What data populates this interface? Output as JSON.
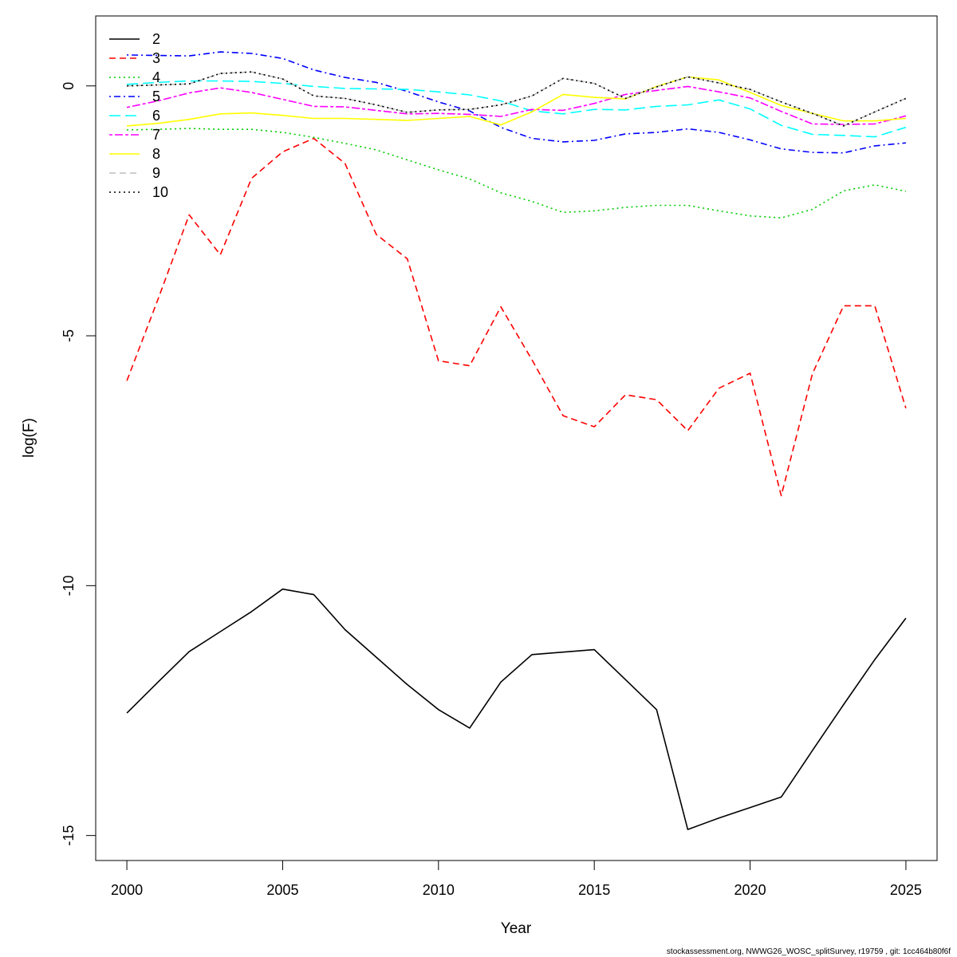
{
  "chart_data": {
    "type": "line",
    "title": "",
    "xlabel": "Year",
    "ylabel": "log(F)",
    "xlim": [
      1999,
      2026
    ],
    "ylim": [
      -15.5,
      1.4
    ],
    "xticks": [
      2000,
      2005,
      2010,
      2015,
      2020,
      2025
    ],
    "yticks": [
      -15,
      -10,
      -5,
      0
    ],
    "x": [
      2000,
      2001,
      2002,
      2003,
      2004,
      2005,
      2006,
      2007,
      2008,
      2009,
      2010,
      2011,
      2012,
      2013,
      2014,
      2015,
      2016,
      2017,
      2018,
      2019,
      2020,
      2021,
      2022,
      2023,
      2024,
      2025
    ],
    "legend_position": "top-left",
    "series": [
      {
        "name": "2",
        "color": "#000000",
        "dash": "solid",
        "values": [
          -12.55,
          -11.93,
          -11.32,
          -10.92,
          -10.52,
          -10.07,
          -10.18,
          -10.88,
          -11.43,
          -11.98,
          -12.48,
          -12.85,
          -11.93,
          -11.38,
          -11.33,
          -11.28,
          -11.88,
          -12.48,
          -14.88,
          -14.65,
          -14.44,
          -14.23,
          -13.3,
          -12.38,
          -11.48,
          -10.65
        ]
      },
      {
        "name": "3",
        "color": "#ff0000",
        "dash": "dashed",
        "values": [
          -5.9,
          -4.27,
          -2.58,
          -3.38,
          -1.85,
          -1.32,
          -1.05,
          -1.55,
          -2.97,
          -3.46,
          -5.5,
          -5.6,
          -4.42,
          -5.48,
          -6.6,
          -6.82,
          -6.18,
          -6.28,
          -6.9,
          -6.05,
          -5.75,
          -8.2,
          -5.76,
          -4.4,
          -4.4,
          -6.45
        ]
      },
      {
        "name": "4",
        "color": "#00cd00",
        "dash": "dotted",
        "values": [
          -0.88,
          -0.87,
          -0.85,
          -0.87,
          -0.87,
          -0.93,
          -1.03,
          -1.15,
          -1.28,
          -1.48,
          -1.68,
          -1.86,
          -2.14,
          -2.31,
          -2.53,
          -2.5,
          -2.43,
          -2.39,
          -2.39,
          -2.5,
          -2.6,
          -2.64,
          -2.47,
          -2.1,
          -1.98,
          -2.11
        ]
      },
      {
        "name": "5",
        "color": "#0000ff",
        "dash": "dashdot",
        "values": [
          0.62,
          0.61,
          0.6,
          0.68,
          0.65,
          0.55,
          0.32,
          0.17,
          0.07,
          -0.11,
          -0.32,
          -0.5,
          -0.83,
          -1.05,
          -1.12,
          -1.09,
          -0.96,
          -0.93,
          -0.86,
          -0.93,
          -1.08,
          -1.26,
          -1.33,
          -1.34,
          -1.2,
          -1.14
        ]
      },
      {
        "name": "6",
        "color": "#00ffff",
        "dash": "longdash",
        "values": [
          0.03,
          0.07,
          0.1,
          0.1,
          0.09,
          0.05,
          -0.01,
          -0.05,
          -0.06,
          -0.07,
          -0.12,
          -0.18,
          -0.3,
          -0.5,
          -0.56,
          -0.47,
          -0.48,
          -0.41,
          -0.38,
          -0.28,
          -0.46,
          -0.79,
          -0.97,
          -0.99,
          -1.02,
          -0.83
        ]
      },
      {
        "name": "7",
        "color": "#ff00ff",
        "dash": "twodash",
        "values": [
          -0.43,
          -0.3,
          -0.14,
          -0.04,
          -0.13,
          -0.27,
          -0.41,
          -0.42,
          -0.49,
          -0.56,
          -0.55,
          -0.57,
          -0.61,
          -0.47,
          -0.49,
          -0.35,
          -0.17,
          -0.09,
          -0.01,
          -0.12,
          -0.24,
          -0.51,
          -0.76,
          -0.77,
          -0.76,
          -0.6
        ]
      },
      {
        "name": "8",
        "color": "#ffff00",
        "dash": "solid",
        "values": [
          -0.8,
          -0.75,
          -0.67,
          -0.56,
          -0.54,
          -0.59,
          -0.65,
          -0.65,
          -0.67,
          -0.69,
          -0.65,
          -0.61,
          -0.78,
          -0.52,
          -0.17,
          -0.23,
          -0.26,
          -0.01,
          0.18,
          0.12,
          -0.13,
          -0.39,
          -0.55,
          -0.7,
          -0.7,
          -0.65
        ]
      },
      {
        "name": "9",
        "color": "#bebebe",
        "dash": "dashed",
        "values": [
          0.0,
          0.02,
          0.04,
          0.25,
          0.28,
          0.14,
          -0.2,
          -0.25,
          -0.38,
          -0.53,
          -0.48,
          -0.47,
          -0.38,
          -0.2,
          0.15,
          0.05,
          -0.25,
          -0.02,
          0.18,
          0.06,
          -0.07,
          -0.32,
          -0.55,
          -0.8,
          -0.52,
          -0.25
        ]
      },
      {
        "name": "10",
        "color": "#000000",
        "dash": "dotted",
        "values": [
          0.0,
          0.02,
          0.04,
          0.25,
          0.28,
          0.14,
          -0.2,
          -0.25,
          -0.38,
          -0.53,
          -0.48,
          -0.47,
          -0.38,
          -0.2,
          0.15,
          0.05,
          -0.25,
          -0.02,
          0.18,
          0.06,
          -0.07,
          -0.32,
          -0.55,
          -0.8,
          -0.52,
          -0.25
        ]
      }
    ]
  },
  "footer": {
    "text": "stockassessment.org, NWWG26_WOSC_splitSurvey, r19759 , git: 1cc464b80f6f"
  }
}
